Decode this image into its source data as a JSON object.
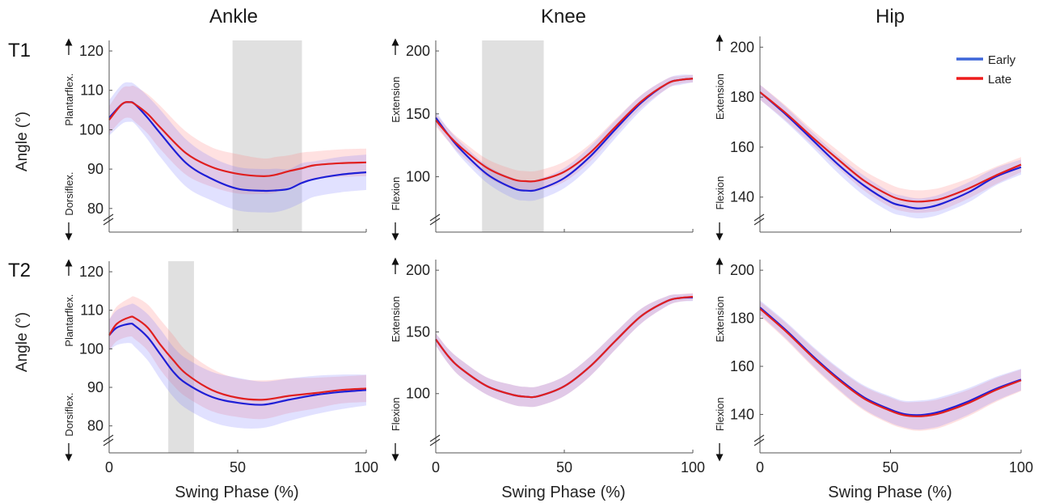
{
  "figure": {
    "columns": [
      "Ankle",
      "Knee",
      "Hip"
    ],
    "rows": [
      "T1",
      "T2"
    ],
    "ylabel": "Angle (°)",
    "xlabel": "Swing Phase (%)",
    "colors": {
      "Early": "#1f1fd6",
      "Late": "#e01f1f",
      "shade": "#e0e0e0"
    }
  },
  "legend": {
    "items": [
      {
        "name": "Early",
        "color": "#3d66d9"
      },
      {
        "name": "Late",
        "color": "#ee1c1c"
      }
    ]
  },
  "chart_data": [
    {
      "type": "line",
      "row": "T1",
      "joint": "Ankle",
      "ylim": [
        74,
        120
      ],
      "yticks": [
        80,
        90,
        100,
        110,
        120
      ],
      "xlim": [
        0,
        100
      ],
      "xticks": [
        0,
        50,
        100
      ],
      "direction_labels": {
        "top": "Plantarflex.",
        "bottom": "Dorsiflex."
      },
      "show_xticklabels": false,
      "show_xlabel": false,
      "legend": false,
      "shaded_region": [
        48,
        75
      ],
      "x": [
        0,
        5,
        8,
        10,
        15,
        20,
        30,
        40,
        50,
        60,
        65,
        70,
        75,
        80,
        90,
        100
      ],
      "series": [
        {
          "name": "Early",
          "values": [
            103,
            106.5,
            107,
            106.5,
            103,
            99,
            91.5,
            87.5,
            85,
            84.5,
            84.6,
            85,
            86.5,
            87.5,
            88.6,
            89.2
          ],
          "band": [
            4.5,
            5,
            5,
            5,
            5.5,
            6,
            6,
            5.5,
            5.5,
            5.5,
            5.5,
            5,
            5,
            4.5,
            4.5,
            4.5
          ]
        },
        {
          "name": "Late",
          "values": [
            102.5,
            106.5,
            107,
            106.5,
            104,
            100.5,
            94,
            90.5,
            88.8,
            88.2,
            88.6,
            89.5,
            90.2,
            91,
            91.5,
            91.7
          ],
          "band": [
            3.5,
            4,
            4,
            4.5,
            5,
            5.5,
            5.5,
            5,
            5,
            4.5,
            4.5,
            4,
            4,
            3.5,
            3.5,
            3.5
          ]
        }
      ]
    },
    {
      "type": "line",
      "row": "T1",
      "joint": "Knee",
      "ylim": [
        56,
        200
      ],
      "yticks": [
        100,
        150,
        200
      ],
      "xlim": [
        0,
        100
      ],
      "xticks": [
        0,
        50,
        100
      ],
      "direction_labels": {
        "top": "Extension",
        "bottom": "Flexion"
      },
      "show_xticklabels": false,
      "show_xlabel": false,
      "legend": false,
      "shaded_region": [
        18,
        42
      ],
      "x": [
        0,
        5,
        10,
        20,
        30,
        35,
        40,
        50,
        60,
        70,
        80,
        90,
        95,
        100
      ],
      "series": [
        {
          "name": "Early",
          "values": [
            147,
            133,
            121,
            102,
            91,
            89,
            90,
            99,
            116,
            138,
            159,
            174,
            177,
            178
          ],
          "band": [
            5,
            5,
            6,
            7,
            8,
            8,
            8,
            8,
            8,
            7,
            6,
            4,
            4,
            3
          ]
        },
        {
          "name": "Late",
          "values": [
            145,
            133,
            123,
            107,
            98,
            96.5,
            97,
            104,
            119,
            140,
            160,
            174,
            177,
            178
          ],
          "band": [
            5,
            5,
            6,
            7,
            8,
            8,
            8,
            8,
            7,
            6,
            5,
            4,
            3,
            3
          ]
        }
      ]
    },
    {
      "type": "line",
      "row": "T1",
      "joint": "Hip",
      "ylim": [
        126,
        200
      ],
      "yticks": [
        140,
        160,
        180,
        200
      ],
      "xlim": [
        0,
        100
      ],
      "xticks": [
        0,
        50,
        100
      ],
      "direction_labels": {
        "top": "Extension",
        "bottom": "Flexion"
      },
      "show_xticklabels": false,
      "show_xlabel": false,
      "legend": true,
      "x": [
        0,
        10,
        20,
        30,
        40,
        50,
        55,
        60,
        65,
        70,
        80,
        90,
        100
      ],
      "series": [
        {
          "name": "Early",
          "values": [
            182,
            173,
            163,
            153,
            144.5,
            138,
            136.5,
            135.5,
            136,
            137.5,
            142,
            148,
            152
          ],
          "band": [
            3,
            3,
            3,
            3.5,
            4,
            4,
            4,
            4,
            4,
            4,
            4,
            3.5,
            3
          ]
        },
        {
          "name": "Late",
          "values": [
            182,
            173.5,
            164,
            155,
            146.5,
            140.5,
            138.8,
            138.2,
            138.5,
            139.5,
            143.5,
            148.5,
            153
          ],
          "band": [
            3,
            3,
            3,
            3.5,
            4,
            4.5,
            4.5,
            4.5,
            4.5,
            4.5,
            4,
            3.5,
            3
          ]
        }
      ]
    },
    {
      "type": "line",
      "row": "T2",
      "joint": "Ankle",
      "ylim": [
        73,
        120
      ],
      "yticks": [
        80,
        90,
        100,
        110,
        120
      ],
      "xlim": [
        0,
        100
      ],
      "xticks": [
        0,
        50,
        100
      ],
      "direction_labels": {
        "top": "Plantarflex.",
        "bottom": "Dorsiflex."
      },
      "show_xticklabels": true,
      "show_xlabel": true,
      "legend": false,
      "shaded_region": [
        23,
        33
      ],
      "x": [
        0,
        3,
        8,
        10,
        15,
        20,
        25,
        30,
        40,
        50,
        60,
        70,
        80,
        90,
        100
      ],
      "series": [
        {
          "name": "Early",
          "values": [
            103.5,
            105.5,
            106.5,
            106,
            103,
            98.5,
            94,
            91,
            87.5,
            86,
            85.5,
            86.8,
            88,
            88.8,
            89.3
          ],
          "band": [
            4,
            4.5,
            5,
            5.5,
            6,
            6.5,
            6.5,
            6.5,
            6.5,
            6.5,
            6,
            5.5,
            5,
            4.5,
            4
          ]
        },
        {
          "name": "Late",
          "values": [
            103.5,
            106.5,
            108.2,
            108,
            105.5,
            101,
            97,
            93.5,
            89.3,
            87.3,
            86.8,
            87.8,
            88.5,
            89.3,
            89.7
          ],
          "band": [
            4,
            4.5,
            5,
            5.5,
            6,
            6.5,
            6.5,
            6,
            5.5,
            5,
            5,
            4.5,
            4,
            3.5,
            3.5
          ]
        }
      ]
    },
    {
      "type": "line",
      "row": "T2",
      "joint": "Knee",
      "ylim": [
        52,
        200
      ],
      "yticks": [
        100,
        150,
        200
      ],
      "xlim": [
        0,
        100
      ],
      "xticks": [
        0,
        50,
        100
      ],
      "direction_labels": {
        "top": "Extension",
        "bottom": "Flexion"
      },
      "show_xticklabels": true,
      "show_xlabel": true,
      "legend": false,
      "x": [
        0,
        5,
        10,
        20,
        30,
        35,
        40,
        50,
        60,
        70,
        80,
        90,
        95,
        100
      ],
      "series": [
        {
          "name": "Early",
          "values": [
            144,
            130,
            120,
            106,
            99,
            97.5,
            98,
            106,
            122,
            143,
            163,
            175,
            177.5,
            178
          ],
          "band": [
            5,
            6,
            7,
            7,
            8,
            8,
            8,
            8,
            8,
            7,
            6,
            4,
            3,
            3
          ]
        },
        {
          "name": "Late",
          "values": [
            144,
            130,
            120,
            106,
            99,
            97.5,
            98,
            106,
            122,
            143,
            163,
            175,
            177.5,
            178.5
          ],
          "band": [
            5,
            6,
            7,
            7,
            8,
            8,
            8,
            8,
            8,
            7,
            6,
            4,
            3,
            3
          ]
        }
      ]
    },
    {
      "type": "line",
      "row": "T2",
      "joint": "Hip",
      "ylim": [
        124,
        200
      ],
      "yticks": [
        140,
        160,
        180,
        200
      ],
      "xlim": [
        0,
        100
      ],
      "xticks": [
        0,
        50,
        100
      ],
      "direction_labels": {
        "top": "Extension",
        "bottom": "Flexion"
      },
      "show_xticklabels": true,
      "show_xlabel": true,
      "legend": false,
      "x": [
        0,
        10,
        20,
        30,
        40,
        50,
        55,
        60,
        65,
        70,
        80,
        90,
        100
      ],
      "series": [
        {
          "name": "Early",
          "values": [
            184.5,
            175,
            164.5,
            155,
            147,
            142,
            140.2,
            139.7,
            140.2,
            141.5,
            145.5,
            150.5,
            154.5
          ],
          "band": [
            3,
            3.5,
            4,
            4.5,
            5,
            5.5,
            5.5,
            6,
            6,
            6,
            5.5,
            5,
            4.5
          ]
        },
        {
          "name": "Late",
          "values": [
            184,
            174.5,
            164,
            154.5,
            146.5,
            141.5,
            139.7,
            139.2,
            139.6,
            140.8,
            144.8,
            150,
            154.2
          ],
          "band": [
            3,
            3.5,
            4,
            4.5,
            5,
            5.5,
            5.5,
            6,
            6,
            6,
            5.5,
            5,
            4.5
          ]
        }
      ]
    }
  ]
}
